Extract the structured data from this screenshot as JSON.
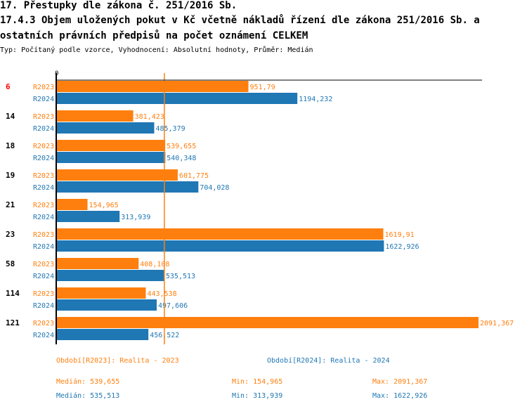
{
  "header": {
    "title": "17. Přestupky dle zákona č. 251/2016 Sb.",
    "subtitle_line1": "17.4.3 Objem uložených pokut v Kč včetně nákladů řízení dle zákona 251/2016 Sb. a",
    "subtitle_line2": " ostatních právních předpisů na počet oznámení CELKEM",
    "type_line": "Typ: Počítaný podle vzorce, Vyhodnocení: Absolutní hodnoty, Průměr: Medián"
  },
  "chart_data": {
    "type": "bar",
    "orientation": "horizontal",
    "axis_zero_label": "0",
    "categories": [
      "6",
      "14",
      "18",
      "19",
      "21",
      "23",
      "58",
      "114",
      "121"
    ],
    "highlighted_category": "6",
    "series": [
      {
        "name": "R2023",
        "color": "#ff7f0e",
        "values": [
          951.79,
          381.423,
          539.655,
          601.775,
          154.965,
          1619.91,
          408.108,
          443.538,
          2091.367
        ],
        "labels": [
          "951,79",
          "381,423",
          "539,655",
          "601,775",
          "154,965",
          "1619,91",
          "408,108",
          "443,538",
          "2091,367"
        ]
      },
      {
        "name": "R2024",
        "color": "#1f77b4",
        "values": [
          1194.232,
          485.379,
          540.348,
          704.028,
          313.939,
          1622.926,
          535.513,
          497.606,
          456.522
        ],
        "labels": [
          "1194,232",
          "485,379",
          "540,348",
          "704,028",
          "313,939",
          "1622,926",
          "535,513",
          "497,606",
          "456,522"
        ]
      }
    ],
    "median_line": 535.513,
    "xlim": [
      0,
      2091.367
    ]
  },
  "legend": {
    "r2023": "Období[R2023]: Realita - 2023",
    "r2024": "Období[R2024]: Realita - 2024"
  },
  "stats": {
    "r2023": {
      "median": "Medián: 539,655",
      "min": "Min: 154,965",
      "max": "Max: 2091,367"
    },
    "r2024": {
      "median": "Medián: 535,513",
      "min": "Min: 313,939",
      "max": "Max: 1622,926"
    }
  }
}
